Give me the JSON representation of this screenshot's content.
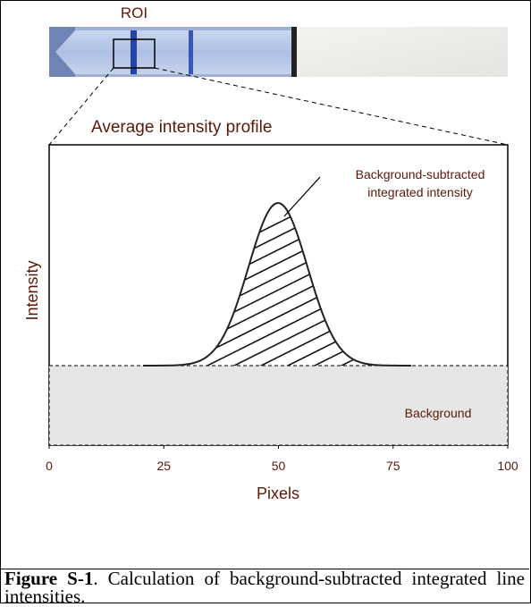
{
  "figure": {
    "roi_label": "ROI",
    "plot_title": "Average intensity profile",
    "y_label": "Intensity",
    "x_label": "Pixels",
    "xlim": [
      0,
      100
    ],
    "xticks": [
      0,
      25,
      50,
      75,
      100
    ],
    "peak_annotation": [
      "Background-subtracted",
      "integrated intensity"
    ],
    "background_label": "Background"
  },
  "caption": {
    "label": "Figure S-1",
    "text": ". Calculation of background-subtracted integrated line intensities."
  }
}
